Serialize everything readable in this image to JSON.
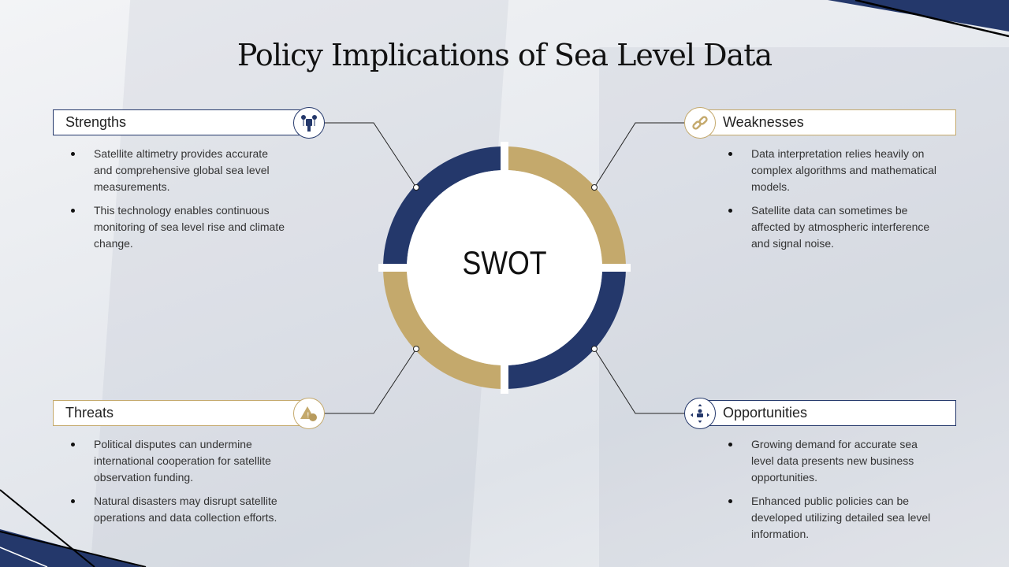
{
  "title": "Policy Implications of Sea Level Data",
  "center_label": "SWOT",
  "colors": {
    "navy": "#24386b",
    "gold": "#c4a96c"
  },
  "quadrants": {
    "strengths": {
      "label": "Strengths",
      "icon": "protest-hand-icon",
      "bullets": [
        "Satellite altimetry provides accurate and comprehensive global sea level measurements.",
        "This technology enables continuous monitoring of sea level rise and climate change."
      ]
    },
    "weaknesses": {
      "label": "Weaknesses",
      "icon": "broken-chain-link-icon",
      "bullets": [
        "Data interpretation relies heavily on complex algorithms and mathematical models.",
        "Satellite data can sometimes be affected by atmospheric interference and signal noise."
      ]
    },
    "threats": {
      "label": "Threats",
      "icon": "warning-triangle-icon",
      "bullets": [
        "Political disputes can undermine international cooperation for satellite observation funding.",
        "Natural disasters may disrupt satellite operations and data collection efforts."
      ]
    },
    "opportunities": {
      "label": "Opportunities",
      "icon": "person-expand-arrows-icon",
      "bullets": [
        "Growing demand for accurate sea level data presents new business opportunities.",
        "Enhanced public policies can be developed utilizing detailed sea level information."
      ]
    }
  }
}
